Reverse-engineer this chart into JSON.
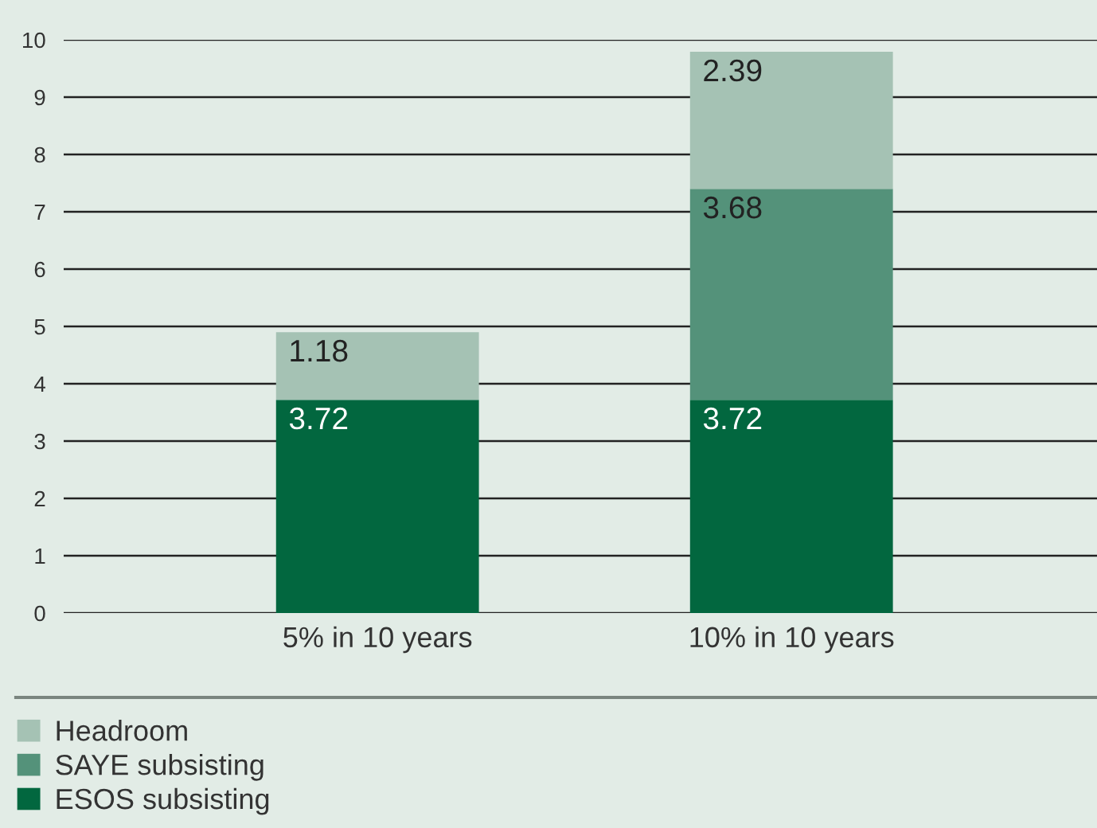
{
  "chart_data": {
    "type": "bar",
    "stacked": true,
    "categories": [
      "5% in 10 years",
      "10% in 10 years"
    ],
    "series": [
      {
        "name": "ESOS subsisting",
        "color": "#02673f",
        "values": [
          3.72,
          3.72
        ]
      },
      {
        "name": "SAYE subsisting",
        "color": "#54927a",
        "values": [
          null,
          3.68
        ]
      },
      {
        "name": "Headroom",
        "color": "#a5c2b4",
        "values": [
          1.18,
          2.39
        ]
      }
    ],
    "ylim": [
      0,
      10
    ],
    "yticks": [
      0,
      1,
      2,
      3,
      4,
      5,
      6,
      7,
      8,
      9,
      10
    ],
    "grid": "y",
    "legend": "bottom",
    "data_labels": true
  }
}
